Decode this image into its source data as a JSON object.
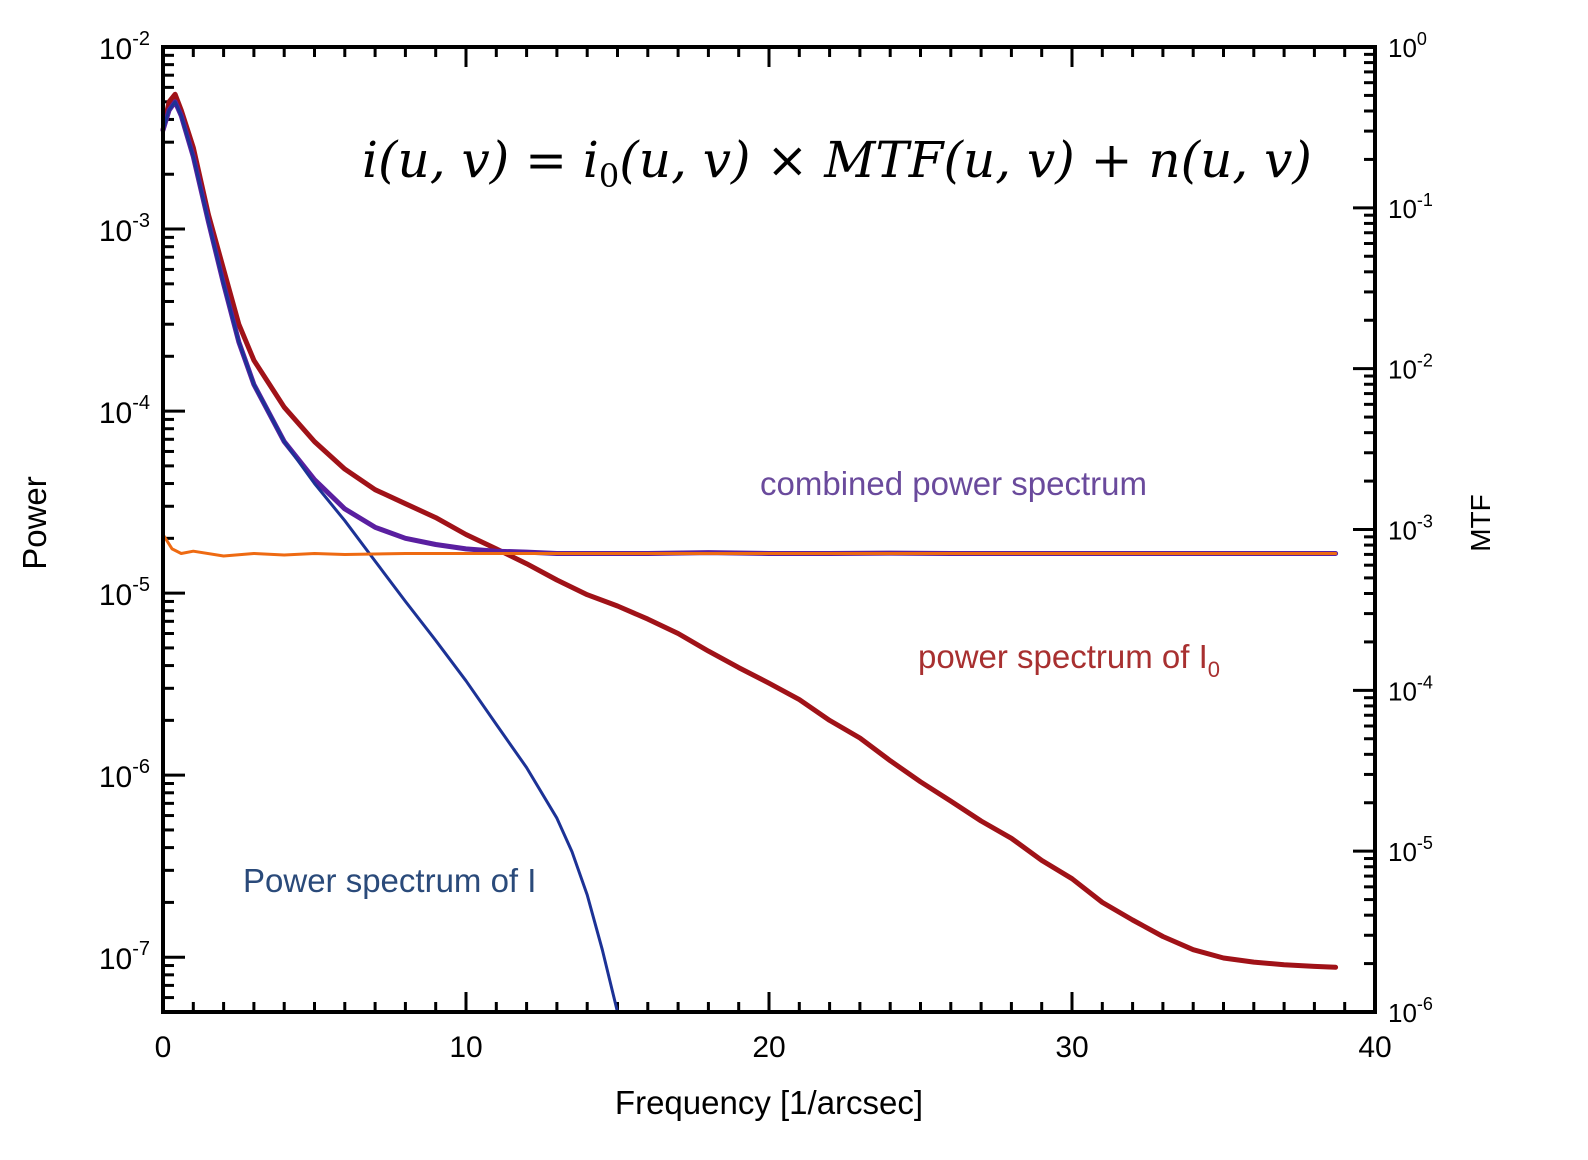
{
  "chart_data": {
    "type": "line",
    "xlabel": "Frequency [1/arcsec]",
    "ylabel": "Power",
    "y2label": "MTF",
    "xlim": [
      0,
      40
    ],
    "ylim": [
      5e-08,
      0.01
    ],
    "y_scale": "log",
    "y2lim": [
      1e-06,
      1
    ],
    "y2_scale": "log",
    "x_ticks": [
      "0",
      "10",
      "20",
      "30",
      "40"
    ],
    "y_ticks": [
      {
        "base": "10",
        "exp": "-2",
        "value": 0.01
      },
      {
        "base": "10",
        "exp": "-3",
        "value": 0.001
      },
      {
        "base": "10",
        "exp": "-4",
        "value": 0.0001
      },
      {
        "base": "10",
        "exp": "-5",
        "value": 1e-05
      },
      {
        "base": "10",
        "exp": "-6",
        "value": 1e-06
      },
      {
        "base": "10",
        "exp": "-7",
        "value": 1e-07
      }
    ],
    "y2_ticks": [
      {
        "base": "10",
        "exp": "0",
        "value": 1
      },
      {
        "base": "10",
        "exp": "-1",
        "value": 0.1
      },
      {
        "base": "10",
        "exp": "-2",
        "value": 0.01
      },
      {
        "base": "10",
        "exp": "-3",
        "value": 0.001
      },
      {
        "base": "10",
        "exp": "-4",
        "value": 0.0001
      },
      {
        "base": "10",
        "exp": "-5",
        "value": 1e-05
      },
      {
        "base": "10",
        "exp": "-6",
        "value": 1e-06
      }
    ],
    "equation": {
      "p1": "i(u, v) = i",
      "sub1": "0",
      "p2": "(u, v)  × MTF(u, v) + n(u, v)"
    },
    "annotations": {
      "combined": "combined power spectrum",
      "i0_text": "power spectrum of I",
      "i0_sub": "0",
      "i": "Power spectrum of I"
    },
    "colors": {
      "i0": "#a01218",
      "combined": "#5a1fa0",
      "i": "#1c3296",
      "noise": "#ee6a12",
      "combined_text": "#6a4a9c",
      "i0_text": "#a83030",
      "i_text": "#2a4a7a"
    },
    "series": [
      {
        "key": "i0",
        "x": [
          0,
          0.2,
          0.4,
          0.6,
          1,
          1.5,
          2,
          2.5,
          3,
          4,
          5,
          6,
          7,
          8,
          9,
          10,
          11,
          12,
          13,
          14,
          15,
          16,
          17,
          18,
          19,
          20,
          21,
          22,
          23,
          24,
          25,
          26,
          27,
          28,
          29,
          30,
          31,
          32,
          33,
          34,
          35,
          36,
          37,
          38,
          38.7
        ],
        "y": [
          0.0035,
          0.005,
          0.0055,
          0.0045,
          0.0028,
          0.0012,
          0.0006,
          0.0003,
          0.00019,
          0.000105,
          6.8e-05,
          4.8e-05,
          3.7e-05,
          3.1e-05,
          2.6e-05,
          2.1e-05,
          1.75e-05,
          1.45e-05,
          1.18e-05,
          9.8e-06,
          8.5e-06,
          7.2e-06,
          6e-06,
          4.8e-06,
          3.9e-06,
          3.2e-06,
          2.6e-06,
          2e-06,
          1.6e-06,
          1.2e-06,
          9.2e-07,
          7.2e-07,
          5.6e-07,
          4.5e-07,
          3.4e-07,
          2.7e-07,
          2e-07,
          1.6e-07,
          1.3e-07,
          1.1e-07,
          9.9e-08,
          9.4e-08,
          9.1e-08,
          8.9e-08,
          8.8e-08
        ]
      },
      {
        "key": "combined",
        "x": [
          0,
          0.2,
          0.4,
          0.6,
          1,
          1.5,
          2,
          2.5,
          3,
          4,
          5,
          6,
          7,
          8,
          9,
          10,
          11,
          12,
          13,
          14,
          15,
          16,
          18,
          20,
          22,
          24,
          26,
          28,
          30,
          32,
          34,
          36,
          38,
          38.7
        ],
        "y": [
          0.0035,
          0.0045,
          0.005,
          0.0042,
          0.0025,
          0.0011,
          0.0005,
          0.00024,
          0.00014,
          6.8e-05,
          4.2e-05,
          2.9e-05,
          2.3e-05,
          2e-05,
          1.85e-05,
          1.75e-05,
          1.7e-05,
          1.68e-05,
          1.65e-05,
          1.65e-05,
          1.65e-05,
          1.65e-05,
          1.67e-05,
          1.65e-05,
          1.65e-05,
          1.66e-05,
          1.65e-05,
          1.65e-05,
          1.65e-05,
          1.65e-05,
          1.65e-05,
          1.65e-05,
          1.65e-05,
          1.65e-05
        ]
      },
      {
        "key": "i",
        "x": [
          0,
          0.2,
          0.4,
          0.6,
          1,
          1.5,
          2,
          2.5,
          3,
          4,
          5,
          6,
          7,
          8,
          9,
          10,
          11,
          12,
          13,
          13.5,
          14,
          14.5,
          15
        ],
        "y": [
          0.0035,
          0.0045,
          0.005,
          0.0042,
          0.0025,
          0.0011,
          0.0005,
          0.00024,
          0.00014,
          6.8e-05,
          4e-05,
          2.5e-05,
          1.5e-05,
          9e-06,
          5.5e-06,
          3.3e-06,
          1.9e-06,
          1.1e-06,
          5.8e-07,
          3.8e-07,
          2.2e-07,
          1.1e-07,
          5e-08
        ]
      },
      {
        "key": "noise",
        "x": [
          0,
          0.3,
          0.6,
          1,
          2,
          3,
          4,
          5,
          6,
          8,
          10,
          12,
          14,
          16,
          18,
          20,
          22,
          24,
          26,
          28,
          30,
          32,
          34,
          36,
          38.7
        ],
        "y": [
          2.1e-05,
          1.75e-05,
          1.65e-05,
          1.7e-05,
          1.6e-05,
          1.65e-05,
          1.62e-05,
          1.65e-05,
          1.63e-05,
          1.65e-05,
          1.65e-05,
          1.65e-05,
          1.65e-05,
          1.65e-05,
          1.65e-05,
          1.65e-05,
          1.65e-05,
          1.65e-05,
          1.65e-05,
          1.65e-05,
          1.65e-05,
          1.65e-05,
          1.65e-05,
          1.65e-05,
          1.65e-05
        ]
      }
    ]
  }
}
